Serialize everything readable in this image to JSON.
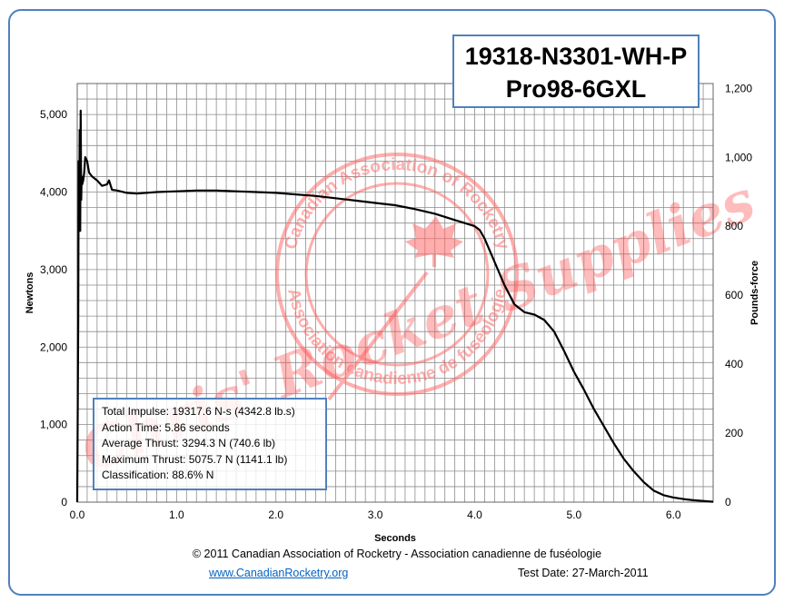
{
  "title": {
    "line1": "19318-N3301-WH-P",
    "line2": "Pro98-6GXL"
  },
  "stats": {
    "total_impulse": "Total Impulse: 19317.6 N-s (4342.8 lb.s)",
    "action_time": "Action Time: 5.86 seconds",
    "average_thrust": "Average Thrust: 3294.3 N (740.6 lb)",
    "maximum_thrust": "Maximum Thrust: 5075.7 N (1141.1 lb)",
    "classification": "Classification: 88.6% N"
  },
  "footer": {
    "copyright": "© 2011 Canadian Association of Rocketry - Association canadienne de fuséologie",
    "link": "www.CanadianRocketry.org",
    "test_date": "Test  Date: 27-March-2011"
  },
  "watermark": {
    "brand": "Chris' Rocket Supplies",
    "seal_top": "Canadian Association of Rocketry",
    "seal_bottom": "Association canadienne de fuséologie",
    "color": "#ff6b6b"
  },
  "colors": {
    "frame": "#4f81bd",
    "grid": "#8c8c8c",
    "curve": "#000000"
  },
  "chart_data": {
    "type": "line",
    "xlabel": "Seconds",
    "ylabel": "Newtons",
    "ylabel_right": "Pounds-force",
    "xlim": [
      0,
      6.4
    ],
    "ylim": [
      0,
      5400
    ],
    "ylim_right": [
      0,
      1214
    ],
    "x_ticks": [
      0.0,
      1.0,
      2.0,
      3.0,
      4.0,
      5.0,
      6.0
    ],
    "x_tick_labels": [
      "0.0",
      "1.0",
      "2.0",
      "3.0",
      "4.0",
      "5.0",
      "6.0"
    ],
    "y_ticks": [
      0,
      1000,
      2000,
      3000,
      4000,
      5000
    ],
    "y_tick_labels": [
      "0",
      "1,000",
      "2,000",
      "3,000",
      "4,000",
      "5,000"
    ],
    "y_right_ticks": [
      0,
      200,
      400,
      600,
      800,
      1000,
      1200
    ],
    "y_right_tick_labels": [
      "0",
      "200",
      "400",
      "600",
      "800",
      "1,000",
      "1,200"
    ],
    "x_minor_step": 0.1,
    "y_minor_step": 200,
    "grid": true,
    "series": [
      {
        "x": [
          0.0,
          0.01,
          0.015,
          0.02,
          0.025,
          0.03,
          0.035,
          0.04,
          0.045,
          0.05,
          0.06,
          0.07,
          0.08,
          0.1,
          0.12,
          0.15,
          0.2,
          0.25,
          0.3,
          0.32,
          0.35,
          0.4,
          0.5,
          0.6,
          0.8,
          1.0,
          1.2,
          1.4,
          1.6,
          1.8,
          2.0,
          2.2,
          2.4,
          2.6,
          2.8,
          3.0,
          3.2,
          3.4,
          3.6,
          3.8,
          3.9,
          4.0,
          4.05,
          4.1,
          4.2,
          4.3,
          4.4,
          4.5,
          4.6,
          4.7,
          4.8,
          4.9,
          5.0,
          5.1,
          5.2,
          5.3,
          5.4,
          5.5,
          5.6,
          5.7,
          5.8,
          5.9,
          6.0,
          6.1,
          6.2,
          6.3,
          6.4
        ],
        "y": [
          0,
          2300,
          4400,
          3600,
          4800,
          3500,
          5050,
          3900,
          4200,
          4100,
          4150,
          4250,
          4450,
          4400,
          4250,
          4200,
          4150,
          4080,
          4100,
          4150,
          4030,
          4020,
          3990,
          3980,
          4000,
          4010,
          4020,
          4020,
          4010,
          4000,
          3990,
          3970,
          3950,
          3920,
          3890,
          3860,
          3830,
          3780,
          3720,
          3640,
          3600,
          3560,
          3510,
          3400,
          3100,
          2800,
          2550,
          2450,
          2420,
          2350,
          2200,
          1950,
          1680,
          1450,
          1200,
          980,
          760,
          560,
          400,
          260,
          150,
          90,
          60,
          40,
          25,
          15,
          5
        ]
      }
    ]
  }
}
